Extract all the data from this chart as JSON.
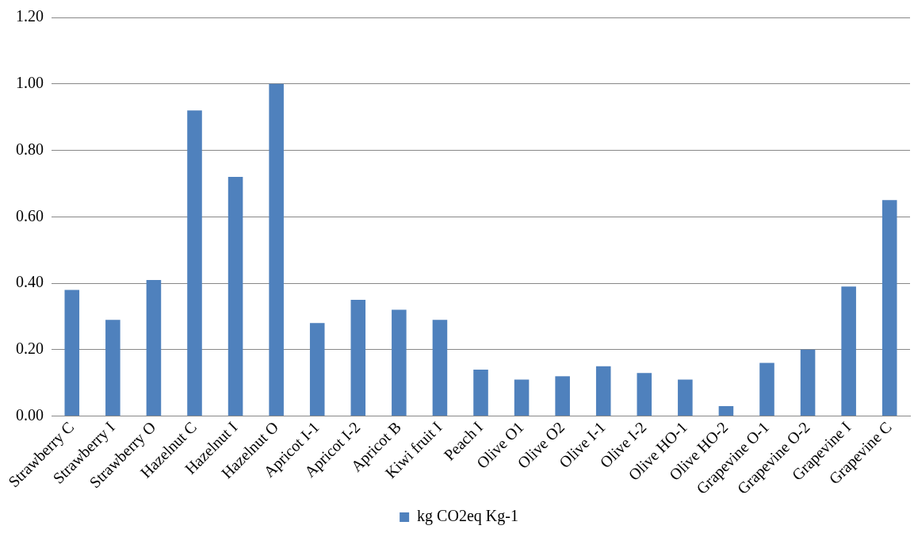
{
  "chart_data": {
    "type": "bar",
    "categories": [
      "Strawberry C",
      "Strawberry I",
      "Strawberry O",
      "Hazelnut C",
      "Hazelnut I",
      "Hazelnut O",
      "Apricot I-1",
      "Apricot I-2",
      "Apricot B",
      "Kiwi fruit I",
      "Peach I",
      "Olive O1",
      "Olive O2",
      "Olive I-1",
      "Olive I-2",
      "Olive HO-1",
      "Olive HO-2",
      "Grapevine O-1",
      "Grapevine O-2",
      "Grapevine I",
      "Grapevine C"
    ],
    "series": [
      {
        "name": "kg CO2eq Kg-1",
        "color": "#4f81bd",
        "values": [
          0.38,
          0.29,
          0.41,
          0.92,
          0.72,
          1.0,
          0.28,
          0.35,
          0.32,
          0.29,
          0.14,
          0.11,
          0.12,
          0.15,
          0.13,
          0.11,
          0.03,
          0.16,
          0.2,
          0.39,
          0.65
        ]
      }
    ],
    "ylim": [
      0,
      1.2
    ],
    "yticks": [
      {
        "value": 0,
        "label": "0.00"
      },
      {
        "value": 0.2,
        "label": "0.20"
      },
      {
        "value": 0.4,
        "label": "0.40"
      },
      {
        "value": 0.6,
        "label": "0.60"
      },
      {
        "value": 0.8,
        "label": "0.80"
      },
      {
        "value": 1,
        "label": "1.00"
      },
      {
        "value": 1.2,
        "label": "1.20"
      }
    ],
    "grid": "y",
    "legend": "bottom"
  }
}
